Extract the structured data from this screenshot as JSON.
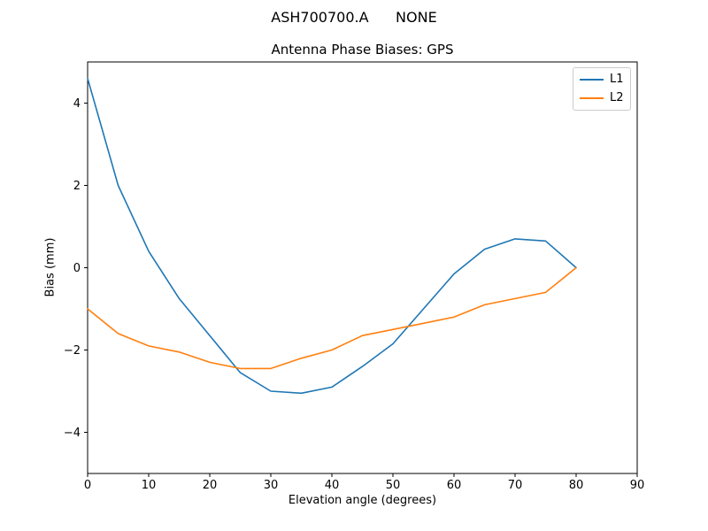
{
  "figure": {
    "suptitle": "ASH700700.A      NONE",
    "axes_title": "Antenna Phase Biases: GPS"
  },
  "chart_data": {
    "type": "line",
    "title": "Antenna Phase Biases: GPS",
    "suptitle": "ASH700700.A      NONE",
    "xlabel": "Elevation angle (degrees)",
    "ylabel": "Bias (mm)",
    "xlim": [
      0,
      90
    ],
    "ylim": [
      -5,
      5
    ],
    "xticks": [
      0,
      10,
      20,
      30,
      40,
      50,
      60,
      70,
      80,
      90
    ],
    "yticks": [
      -4,
      -2,
      0,
      2,
      4
    ],
    "grid": false,
    "legend_position": "upper right",
    "x": [
      0,
      5,
      10,
      15,
      20,
      25,
      30,
      35,
      40,
      45,
      50,
      55,
      60,
      65,
      70,
      75,
      80
    ],
    "series": [
      {
        "name": "L1",
        "color": "#1f77b4",
        "values": [
          4.6,
          2.0,
          0.4,
          -0.75,
          -1.65,
          -2.55,
          -3.0,
          -3.05,
          -2.9,
          -2.4,
          -1.85,
          -1.0,
          -0.15,
          0.45,
          0.7,
          0.65,
          0.0
        ]
      },
      {
        "name": "L2",
        "color": "#ff7f0e",
        "values": [
          -1.0,
          -1.6,
          -1.9,
          -2.05,
          -2.3,
          -2.45,
          -2.45,
          -2.2,
          -2.0,
          -1.65,
          -1.5,
          -1.35,
          -1.2,
          -0.9,
          -0.75,
          -0.6,
          0.0
        ]
      }
    ]
  },
  "colors": {
    "axes": "#000000",
    "legend_border": "#cccccc",
    "background": "#ffffff"
  }
}
